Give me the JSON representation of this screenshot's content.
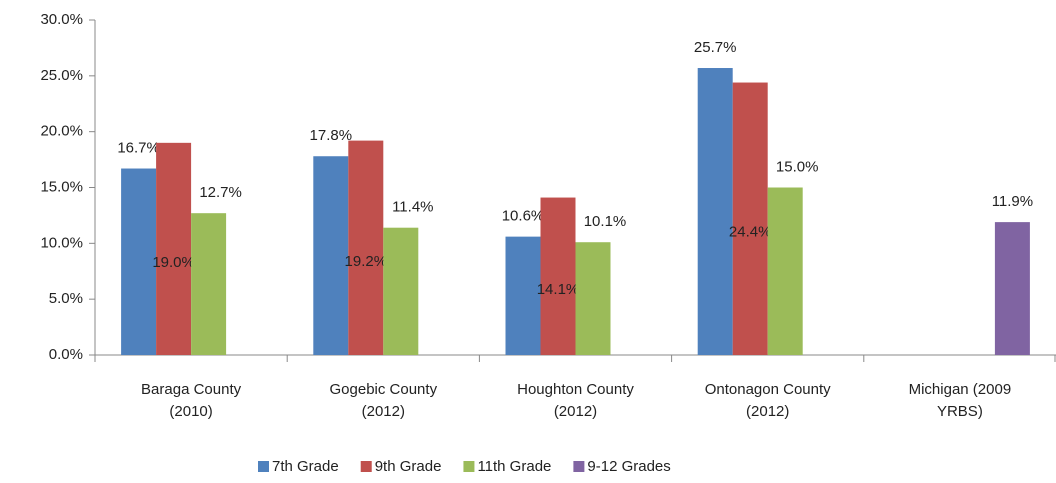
{
  "chart_data": {
    "type": "bar",
    "categories": [
      [
        "Baraga County",
        "(2010)"
      ],
      [
        "Gogebic County",
        "(2012)"
      ],
      [
        "Houghton County",
        "(2012)"
      ],
      [
        "Ontonagon County",
        "(2012)"
      ],
      [
        "Michigan (2009",
        "YRBS)"
      ]
    ],
    "series": [
      {
        "name": "7th Grade",
        "color": "#4f81bd",
        "values": [
          16.7,
          17.8,
          10.6,
          25.7,
          null
        ],
        "value_labels": [
          "16.7%",
          "17.8%",
          "10.6%",
          "25.7%",
          null
        ]
      },
      {
        "name": "9th Grade",
        "color": "#c0504d",
        "values": [
          19.0,
          19.2,
          14.1,
          24.4,
          null
        ],
        "value_labels": [
          "19.0%",
          "19.2%",
          "14.1%",
          "24.4%",
          null
        ]
      },
      {
        "name": "11th Grade",
        "color": "#9bbb59",
        "values": [
          12.7,
          11.4,
          10.1,
          15.0,
          null
        ],
        "value_labels": [
          "12.7%",
          "11.4%",
          "10.1%",
          "15.0%",
          null
        ]
      },
      {
        "name": "9-12 Grades",
        "color": "#8064a2",
        "values": [
          null,
          null,
          null,
          null,
          11.9
        ],
        "value_labels": [
          null,
          null,
          null,
          null,
          "11.9%"
        ]
      }
    ],
    "ylim": [
      0,
      30
    ],
    "yticks": [
      {
        "value": 0,
        "label": "0.0%"
      },
      {
        "value": 5,
        "label": "5.0%"
      },
      {
        "value": 10,
        "label": "10.0%"
      },
      {
        "value": 15,
        "label": "15.0%"
      },
      {
        "value": 20,
        "label": "20.0%"
      },
      {
        "value": 25,
        "label": "25.0%"
      },
      {
        "value": 30,
        "label": "30.0%"
      }
    ],
    "legend": "bottom"
  }
}
